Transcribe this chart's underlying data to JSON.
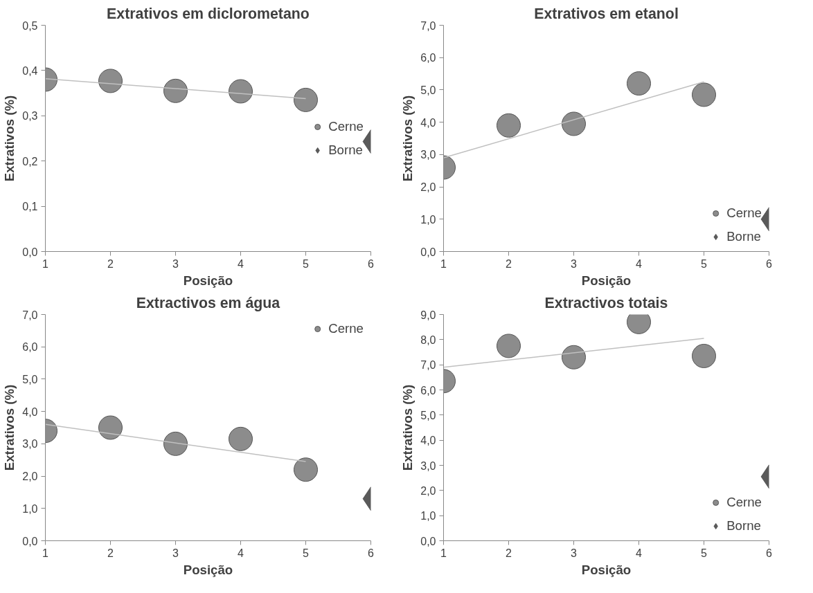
{
  "chart_data": [
    {
      "type": "scatter",
      "title": "Extrativos em diclorometano",
      "xlabel": "Posição",
      "ylabel": "Extrativos (%)",
      "xlim": [
        1,
        6
      ],
      "xticks": [
        1,
        2,
        3,
        4,
        5,
        6
      ],
      "ylim": [
        0,
        0.5
      ],
      "yticks": [
        {
          "value": 0,
          "label": "0,0"
        },
        {
          "value": 0.1,
          "label": "0,1"
        },
        {
          "value": 0.2,
          "label": "0,2"
        },
        {
          "value": 0.3,
          "label": "0,3"
        },
        {
          "value": 0.4,
          "label": "0,4"
        },
        {
          "value": 0.5,
          "label": "0,5"
        }
      ],
      "legend": "right",
      "series": [
        {
          "name": "Cerne",
          "color": "#8c8c8c",
          "marker": "circle",
          "x": [
            1,
            2,
            3,
            4,
            5
          ],
          "values": [
            0.38,
            0.377,
            0.355,
            0.354,
            0.335
          ]
        },
        {
          "name": "Borne",
          "color": "#5a5a5a",
          "marker": "diamond",
          "x": [
            6
          ],
          "values": [
            0.243
          ]
        },
        {
          "type": "line",
          "color": "#c0c0c0",
          "x": [
            1,
            5
          ],
          "values": [
            0.382,
            0.338
          ]
        }
      ]
    },
    {
      "type": "scatter",
      "title": "Extrativos em etanol",
      "xlabel": "Posição",
      "ylabel": "Extrativos (%)",
      "xlim": [
        1,
        6
      ],
      "xticks": [
        1,
        2,
        3,
        4,
        5,
        6
      ],
      "ylim": [
        0,
        7
      ],
      "yticks": [
        {
          "value": 0,
          "label": "0,0"
        },
        {
          "value": 1,
          "label": "1,0"
        },
        {
          "value": 2,
          "label": "2,0"
        },
        {
          "value": 3,
          "label": "3,0"
        },
        {
          "value": 4,
          "label": "4,0"
        },
        {
          "value": 5,
          "label": "5,0"
        },
        {
          "value": 6,
          "label": "6,0"
        },
        {
          "value": 7,
          "label": "7,0"
        }
      ],
      "legend": "bottom right",
      "series": [
        {
          "name": "Cerne",
          "color": "#8c8c8c",
          "marker": "circle",
          "x": [
            1,
            2,
            3,
            4,
            5
          ],
          "values": [
            2.6,
            3.9,
            3.95,
            5.2,
            4.85
          ]
        },
        {
          "name": "Borne",
          "color": "#5a5a5a",
          "marker": "diamond",
          "x": [
            6
          ],
          "values": [
            1.0
          ]
        },
        {
          "type": "line",
          "color": "#c0c0c0",
          "x": [
            1,
            5
          ],
          "values": [
            2.9,
            5.25
          ]
        }
      ]
    },
    {
      "type": "scatter",
      "title": "Extractivos em água",
      "xlabel": "Posição",
      "ylabel": "Extrativos (%)",
      "xlim": [
        1,
        6
      ],
      "xticks": [
        1,
        2,
        3,
        4,
        5,
        6
      ],
      "ylim": [
        0,
        7
      ],
      "yticks": [
        {
          "value": 0,
          "label": "0,0"
        },
        {
          "value": 1,
          "label": "1,0"
        },
        {
          "value": 2,
          "label": "2,0"
        },
        {
          "value": 3,
          "label": "3,0"
        },
        {
          "value": 4,
          "label": "4,0"
        },
        {
          "value": 5,
          "label": "5,0"
        },
        {
          "value": 6,
          "label": "6,0"
        },
        {
          "value": 7,
          "label": "7,0"
        }
      ],
      "legend": "top right",
      "series": [
        {
          "name": "Cerne",
          "color": "#8c8c8c",
          "marker": "circle",
          "x": [
            1,
            2,
            3,
            4,
            5
          ],
          "values": [
            3.4,
            3.5,
            3.0,
            3.15,
            2.2
          ]
        },
        {
          "color": "#5a5a5a",
          "marker": "diamond",
          "x": [
            6
          ],
          "values": [
            1.3
          ]
        },
        {
          "type": "line",
          "color": "#c0c0c0",
          "x": [
            1,
            5
          ],
          "values": [
            3.6,
            2.45
          ]
        }
      ]
    },
    {
      "type": "scatter",
      "title": "Extractivos totais",
      "xlabel": "Posição",
      "ylabel": "Extrativos (%)",
      "xlim": [
        1,
        6
      ],
      "xticks": [
        1,
        2,
        3,
        4,
        5,
        6
      ],
      "ylim": [
        0,
        9
      ],
      "yticks": [
        {
          "value": 0,
          "label": "0,0"
        },
        {
          "value": 1,
          "label": "1,0"
        },
        {
          "value": 2,
          "label": "2,0"
        },
        {
          "value": 3,
          "label": "3,0"
        },
        {
          "value": 4,
          "label": "4,0"
        },
        {
          "value": 5,
          "label": "5,0"
        },
        {
          "value": 6,
          "label": "6,0"
        },
        {
          "value": 7,
          "label": "7,0"
        },
        {
          "value": 8,
          "label": "8,0"
        },
        {
          "value": 9,
          "label": "9,0"
        }
      ],
      "legend": "bottom right",
      "series": [
        {
          "name": "Cerne",
          "color": "#8c8c8c",
          "marker": "circle",
          "x": [
            1,
            2,
            3,
            4,
            5
          ],
          "values": [
            6.35,
            7.75,
            7.3,
            8.7,
            7.35
          ]
        },
        {
          "name": "Borne",
          "color": "#5a5a5a",
          "marker": "diamond",
          "x": [
            6
          ],
          "values": [
            2.55
          ]
        },
        {
          "type": "line",
          "color": "#c0c0c0",
          "x": [
            1,
            5
          ],
          "values": [
            6.9,
            8.05
          ]
        }
      ]
    }
  ]
}
